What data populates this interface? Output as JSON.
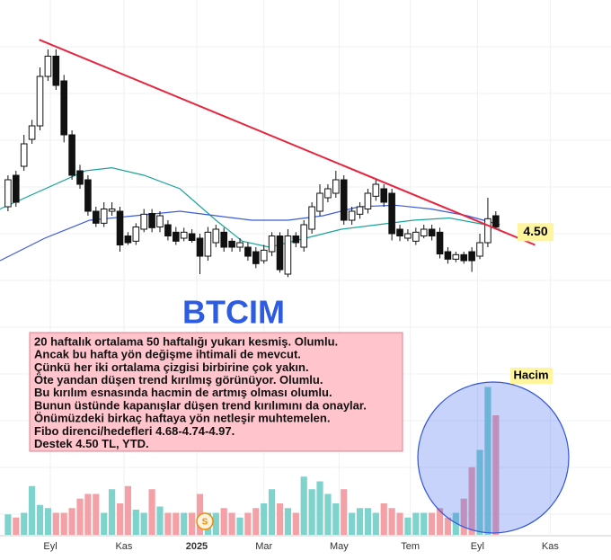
{
  "chart_data": {
    "type": "candlestick",
    "title": "BTCIM",
    "xlim": [
      -1,
      75.4
    ],
    "ylim": [
      0.4,
      7.6
    ],
    "xticks": [
      {
        "value": 5.3,
        "label": "Eyl"
      },
      {
        "value": 14.5,
        "label": "Kas"
      },
      {
        "value": 23.6,
        "label": "2025"
      },
      {
        "value": 32,
        "label": "Mar"
      },
      {
        "value": 41.4,
        "label": "May"
      },
      {
        "value": 50.3,
        "label": "Tem"
      },
      {
        "value": 58.7,
        "label": "Eyl"
      },
      {
        "value": 67.8,
        "label": "Kas"
      }
    ],
    "grid": true,
    "up_color": "#ffffff",
    "down_color": "#111111",
    "open": [
      4.84,
      5.26,
      5.38,
      5.74,
      5.92,
      6.58,
      6.85,
      6.52,
      5.8,
      5.32,
      5.2,
      4.78,
      4.62,
      4.78,
      4.78,
      4.45,
      4.38,
      4.54,
      4.75,
      4.57,
      4.6,
      4.5,
      4.42,
      4.48,
      4.42,
      4.18,
      4.36,
      4.5,
      4.38,
      4.3,
      4.3,
      4.24,
      4.12,
      4.24,
      4.45,
      3.94,
      4.45,
      4.3,
      4.54,
      4.78,
      4.96,
      5.02,
      5.2,
      4.66,
      4.74,
      4.81,
      4.98,
      5.08,
      5.02,
      4.54,
      4.42,
      4.38,
      4.45,
      4.54,
      4.5,
      4.24,
      4.14,
      4.2,
      4.24,
      4.18,
      4.36,
      4.72
    ],
    "high": [
      5.26,
      5.32,
      5.8,
      6.0,
      6.7,
      6.94,
      6.94,
      6.6,
      5.86,
      5.4,
      5.26,
      4.84,
      4.9,
      4.9,
      4.84,
      4.5,
      4.62,
      4.81,
      4.81,
      4.78,
      4.66,
      4.57,
      4.56,
      4.54,
      4.48,
      4.57,
      4.6,
      4.56,
      4.42,
      4.42,
      4.36,
      4.3,
      4.33,
      4.5,
      4.5,
      4.54,
      4.5,
      4.66,
      4.9,
      5.14,
      5.14,
      5.32,
      5.26,
      4.84,
      4.9,
      5.08,
      5.2,
      5.14,
      5.08,
      4.6,
      4.54,
      4.56,
      4.6,
      4.6,
      4.56,
      4.3,
      4.24,
      4.24,
      4.3,
      4.48,
      4.96,
      4.78
    ],
    "low": [
      4.78,
      4.84,
      5.32,
      5.68,
      5.86,
      6.52,
      6.4,
      5.7,
      5.2,
      5.08,
      4.72,
      4.57,
      4.57,
      4.72,
      4.24,
      4.33,
      4.33,
      4.5,
      4.5,
      4.5,
      4.39,
      4.33,
      4.38,
      4.36,
      3.94,
      4.12,
      4.3,
      4.24,
      4.24,
      4.24,
      4.12,
      4.02,
      4.08,
      4.18,
      3.96,
      3.9,
      4.3,
      4.24,
      4.48,
      4.72,
      4.9,
      4.96,
      4.6,
      4.6,
      4.68,
      4.75,
      4.92,
      4.84,
      4.39,
      4.38,
      4.38,
      4.33,
      4.42,
      4.39,
      4.15,
      4.08,
      4.1,
      4.08,
      3.97,
      4.14,
      4.3,
      4.54
    ],
    "close": [
      5.2,
      4.9,
      5.68,
      5.92,
      6.58,
      6.85,
      6.46,
      5.8,
      5.26,
      5.14,
      4.78,
      4.62,
      4.81,
      4.81,
      4.33,
      4.36,
      4.57,
      4.74,
      4.56,
      4.72,
      4.45,
      4.38,
      4.5,
      4.39,
      4.18,
      4.5,
      4.54,
      4.3,
      4.3,
      4.36,
      4.18,
      4.08,
      4.26,
      4.45,
      4.0,
      4.45,
      4.36,
      4.6,
      4.84,
      5.02,
      5.08,
      5.2,
      4.66,
      4.78,
      4.84,
      5.02,
      5.14,
      4.9,
      4.48,
      4.45,
      4.48,
      4.5,
      4.54,
      4.45,
      4.21,
      4.14,
      4.2,
      4.12,
      4.12,
      4.36,
      4.68,
      4.57
    ],
    "series": [
      {
        "color": "#1aa39a",
        "x": [
          -1,
          9.7,
          13,
          17,
          21.5,
          26,
          29.3,
          32.7,
          37.2,
          41.7,
          46.2,
          50.7,
          55.2,
          59.7,
          61.5
        ],
        "values": [
          4.81,
          5.32,
          5.36,
          5.26,
          5.08,
          4.66,
          4.38,
          4.3,
          4.42,
          4.54,
          4.6,
          4.66,
          4.69,
          4.6,
          4.54
        ]
      },
      {
        "color": "#3b5bdb",
        "x": [
          -1,
          4.6,
          10.2,
          15.9,
          21.5,
          26,
          30.5,
          35,
          39.4,
          43.9,
          48.4,
          52.9,
          57.4,
          61.5
        ],
        "values": [
          4.12,
          4.42,
          4.66,
          4.72,
          4.78,
          4.72,
          4.66,
          4.66,
          4.72,
          4.84,
          4.86,
          4.81,
          4.72,
          4.6
        ]
      }
    ],
    "trendline": {
      "color": "#e8253f",
      "x": [
        3.9,
        65.9
      ],
      "values": [
        7.07,
        4.33
      ]
    },
    "price_label": {
      "value": 4.5,
      "label": "4.50"
    },
    "volume": {
      "label": "Hacim",
      "ylim": [
        0,
        100
      ],
      "up_color": "#7fd3cd",
      "down_color": "#f3a0a6",
      "values": [
        13,
        11,
        14,
        31,
        19,
        17,
        14,
        14,
        17,
        23,
        26,
        26,
        14,
        29,
        20,
        31,
        16,
        14,
        29,
        18,
        14,
        14,
        14,
        14,
        26,
        14,
        14,
        17,
        14,
        11,
        14,
        17,
        20,
        29,
        20,
        17,
        14,
        37,
        29,
        34,
        26,
        20,
        29,
        14,
        17,
        17,
        14,
        20,
        17,
        14,
        11,
        14,
        14,
        14,
        17,
        11,
        14,
        23,
        43,
        54,
        94,
        76
      ]
    },
    "annotation_lines": [
      "20 haftalık ortalama 50 haftalığı yukarı kesmiş. Olumlu.",
      "Ancak bu hafta yön değişme ihtimali de mevcut.",
      "Çünkü her iki ortalama çizgisi birbirine çok yakın.",
      "Öte yandan düşen trend kırılmış görünüyor. Olumlu.",
      "Bu kırılım esnasında hacmin de artmış olması olumlu.",
      "Bunun üstünde kapanışlar düşen trend kırılımını da onaylar.",
      "Önümüzdeki birkaç haftaya yön netleşir muhtemelen.",
      "Fibo direnci/hedefleri 4.68-4.74-4.97.",
      "Destek 4.50 TL, YTD."
    ]
  }
}
